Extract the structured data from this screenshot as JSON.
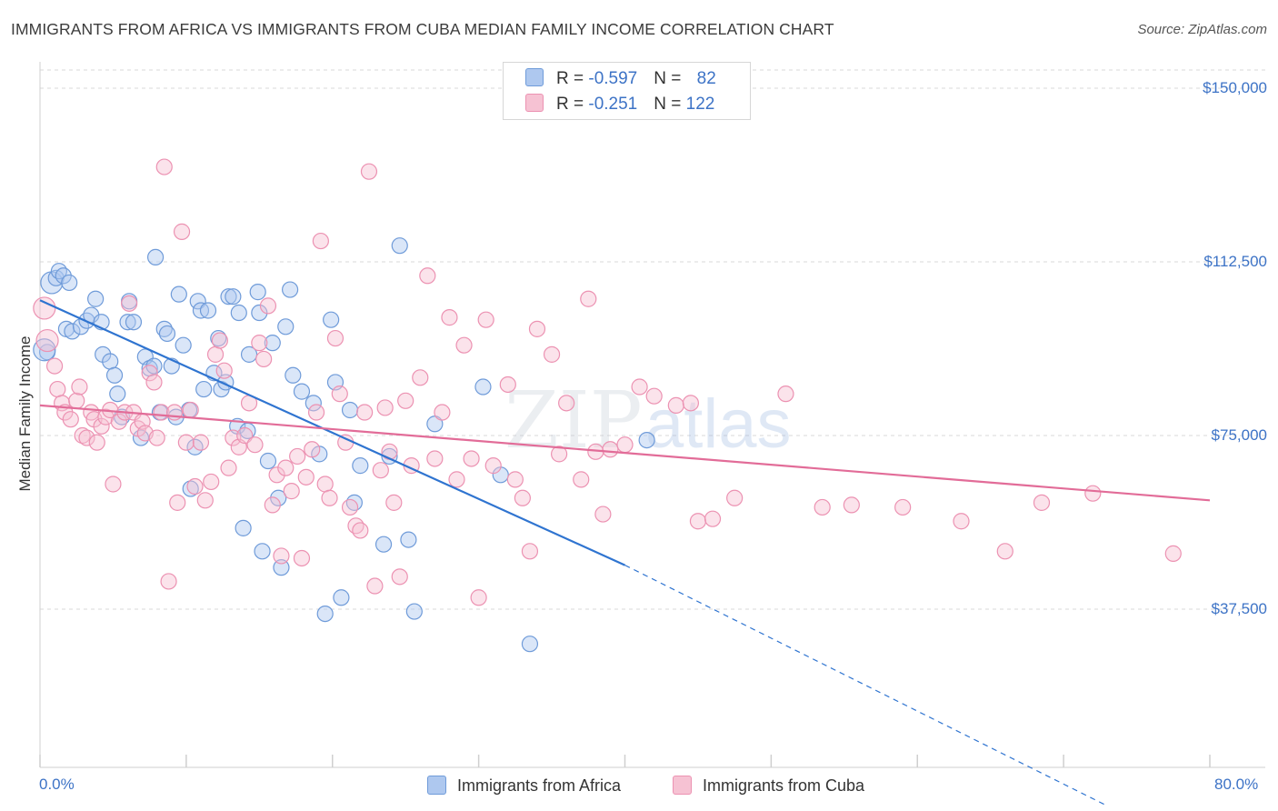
{
  "title": "IMMIGRANTS FROM AFRICA VS IMMIGRANTS FROM CUBA MEDIAN FAMILY INCOME CORRELATION CHART",
  "source": "Source: ZipAtlas.com",
  "watermark": {
    "part1": "ZIP",
    "part2": "atlas"
  },
  "legend": {
    "africa": {
      "r_label": "R = ",
      "r_value": "-0.597",
      "n_label": "N = ",
      "n_value": "82"
    },
    "cuba": {
      "r_label": "R = ",
      "r_value": "-0.251",
      "n_label": "N = ",
      "n_value": "122"
    }
  },
  "colors": {
    "africa_fill": "#aec8ef",
    "africa_stroke": "#6f9bd9",
    "africa_line": "#2f74d0",
    "cuba_fill": "#f6c2d3",
    "cuba_stroke": "#ec92b2",
    "cuba_line": "#e26c98",
    "grid": "#d9d9d9",
    "tick_label": "#3d73c6"
  },
  "chart_data": {
    "type": "scatter",
    "title": "IMMIGRANTS FROM AFRICA VS IMMIGRANTS FROM CUBA MEDIAN FAMILY INCOME CORRELATION CHART",
    "xlabel": "",
    "ylabel": "Median Family Income",
    "xlim": [
      0,
      80
    ],
    "ylim": [
      0,
      157000
    ],
    "x_tick_labels": [
      "0.0%",
      "80.0%"
    ],
    "y_ticks": [
      37500,
      75000,
      112500,
      150000
    ],
    "y_tick_labels": [
      "$37,500",
      "$75,000",
      "$112,500",
      "$150,000"
    ],
    "series": [
      {
        "name": "Immigrants from Africa",
        "key": "africa",
        "r": -0.597,
        "n": 82,
        "trend": {
          "x0": 0,
          "y0": 104200,
          "x1": 40,
          "y1": 47000,
          "dash_to_x": 73.0,
          "dash_to_y": -5000
        },
        "points": [
          [
            0.5,
            93000
          ],
          [
            0.8,
            108000
          ],
          [
            1.1,
            109000
          ],
          [
            1.3,
            110500
          ],
          [
            1.6,
            109500
          ],
          [
            2.0,
            108000
          ],
          [
            1.8,
            98000
          ],
          [
            2.2,
            97500
          ],
          [
            2.8,
            98500
          ],
          [
            3.2,
            99800
          ],
          [
            3.5,
            101000
          ],
          [
            3.8,
            104500
          ],
          [
            4.2,
            99500
          ],
          [
            4.3,
            92500
          ],
          [
            4.8,
            91000
          ],
          [
            5.1,
            88000
          ],
          [
            5.3,
            84000
          ],
          [
            5.6,
            79000
          ],
          [
            6.1,
            104000
          ],
          [
            6.0,
            99500
          ],
          [
            6.4,
            99500
          ],
          [
            6.9,
            74500
          ],
          [
            7.2,
            92000
          ],
          [
            7.5,
            89500
          ],
          [
            7.8,
            90000
          ],
          [
            7.9,
            113500
          ],
          [
            8.2,
            80000
          ],
          [
            8.5,
            98000
          ],
          [
            8.7,
            97000
          ],
          [
            9.0,
            90000
          ],
          [
            9.3,
            79000
          ],
          [
            9.5,
            105500
          ],
          [
            9.8,
            94500
          ],
          [
            10.2,
            80500
          ],
          [
            10.3,
            63500
          ],
          [
            10.6,
            72500
          ],
          [
            10.8,
            104000
          ],
          [
            11.0,
            102000
          ],
          [
            11.2,
            85000
          ],
          [
            11.5,
            102000
          ],
          [
            11.9,
            88500
          ],
          [
            12.2,
            96000
          ],
          [
            12.4,
            85000
          ],
          [
            12.7,
            86500
          ],
          [
            12.9,
            105000
          ],
          [
            13.2,
            105000
          ],
          [
            13.5,
            77000
          ],
          [
            13.6,
            101500
          ],
          [
            13.9,
            55000
          ],
          [
            14.2,
            76000
          ],
          [
            14.3,
            92500
          ],
          [
            14.9,
            106000
          ],
          [
            15.0,
            101500
          ],
          [
            15.2,
            50000
          ],
          [
            15.6,
            69500
          ],
          [
            15.9,
            95000
          ],
          [
            16.3,
            61500
          ],
          [
            16.5,
            46500
          ],
          [
            16.8,
            98500
          ],
          [
            17.1,
            106500
          ],
          [
            17.3,
            88000
          ],
          [
            17.9,
            84500
          ],
          [
            18.7,
            82000
          ],
          [
            19.1,
            71000
          ],
          [
            19.5,
            36500
          ],
          [
            19.9,
            100000
          ],
          [
            20.2,
            86500
          ],
          [
            20.6,
            40000
          ],
          [
            21.2,
            80500
          ],
          [
            21.5,
            60500
          ],
          [
            21.9,
            68500
          ],
          [
            23.5,
            51500
          ],
          [
            23.9,
            70500
          ],
          [
            24.6,
            116000
          ],
          [
            25.2,
            52500
          ],
          [
            25.6,
            37000
          ],
          [
            27.0,
            77500
          ],
          [
            30.3,
            85500
          ],
          [
            31.5,
            66500
          ],
          [
            33.5,
            30000
          ],
          [
            41.5,
            74000
          ],
          [
            0.3,
            93500
          ]
        ]
      },
      {
        "name": "Immigrants from Cuba",
        "key": "cuba",
        "r": -0.251,
        "n": 122,
        "trend": {
          "x0": 0,
          "y0": 81500,
          "x1": 80,
          "y1": 61000
        },
        "points": [
          [
            0.3,
            102500
          ],
          [
            0.5,
            95500
          ],
          [
            1.0,
            90000
          ],
          [
            1.2,
            85000
          ],
          [
            1.5,
            82000
          ],
          [
            1.7,
            80000
          ],
          [
            2.1,
            78500
          ],
          [
            2.5,
            82500
          ],
          [
            2.7,
            85500
          ],
          [
            2.9,
            75000
          ],
          [
            3.2,
            74500
          ],
          [
            3.5,
            80000
          ],
          [
            3.7,
            78500
          ],
          [
            3.9,
            73500
          ],
          [
            4.2,
            77000
          ],
          [
            4.5,
            79000
          ],
          [
            4.8,
            80500
          ],
          [
            5.0,
            64500
          ],
          [
            5.4,
            78000
          ],
          [
            5.8,
            80000
          ],
          [
            6.1,
            103500
          ],
          [
            6.4,
            80000
          ],
          [
            6.7,
            76500
          ],
          [
            7.0,
            78000
          ],
          [
            7.2,
            75500
          ],
          [
            7.5,
            88500
          ],
          [
            7.8,
            86500
          ],
          [
            8.0,
            74500
          ],
          [
            8.3,
            80000
          ],
          [
            8.5,
            133000
          ],
          [
            8.8,
            43500
          ],
          [
            9.2,
            80000
          ],
          [
            9.4,
            60500
          ],
          [
            9.7,
            119000
          ],
          [
            10.0,
            73500
          ],
          [
            10.3,
            80500
          ],
          [
            10.6,
            64000
          ],
          [
            11.0,
            73500
          ],
          [
            11.3,
            61000
          ],
          [
            11.7,
            65000
          ],
          [
            12.0,
            92500
          ],
          [
            12.3,
            95500
          ],
          [
            12.6,
            89000
          ],
          [
            12.9,
            68000
          ],
          [
            13.2,
            74500
          ],
          [
            13.6,
            72500
          ],
          [
            14.0,
            75000
          ],
          [
            14.3,
            82000
          ],
          [
            14.7,
            73000
          ],
          [
            15.0,
            95000
          ],
          [
            15.3,
            91500
          ],
          [
            15.6,
            103000
          ],
          [
            15.9,
            60000
          ],
          [
            16.2,
            66500
          ],
          [
            16.5,
            49000
          ],
          [
            16.8,
            68000
          ],
          [
            17.2,
            63000
          ],
          [
            17.6,
            70500
          ],
          [
            17.9,
            48500
          ],
          [
            18.2,
            66000
          ],
          [
            18.6,
            72000
          ],
          [
            18.9,
            80000
          ],
          [
            19.2,
            117000
          ],
          [
            19.5,
            64500
          ],
          [
            19.8,
            61500
          ],
          [
            20.2,
            96000
          ],
          [
            20.5,
            84000
          ],
          [
            20.9,
            73500
          ],
          [
            21.2,
            59500
          ],
          [
            21.6,
            55500
          ],
          [
            21.9,
            54500
          ],
          [
            22.2,
            80000
          ],
          [
            22.5,
            132000
          ],
          [
            22.9,
            42500
          ],
          [
            23.3,
            67500
          ],
          [
            23.6,
            81000
          ],
          [
            23.9,
            71500
          ],
          [
            24.2,
            60500
          ],
          [
            24.6,
            44500
          ],
          [
            25.0,
            82500
          ],
          [
            25.4,
            68500
          ],
          [
            26.0,
            87500
          ],
          [
            26.5,
            109500
          ],
          [
            27.0,
            70000
          ],
          [
            27.5,
            80000
          ],
          [
            28.0,
            100500
          ],
          [
            28.5,
            65500
          ],
          [
            29.0,
            94500
          ],
          [
            29.5,
            70000
          ],
          [
            30.0,
            40000
          ],
          [
            30.5,
            100000
          ],
          [
            31.0,
            68500
          ],
          [
            32.0,
            86000
          ],
          [
            32.5,
            65500
          ],
          [
            33.0,
            61500
          ],
          [
            33.5,
            50000
          ],
          [
            34.0,
            98000
          ],
          [
            35.0,
            92500
          ],
          [
            35.5,
            71000
          ],
          [
            36.0,
            82000
          ],
          [
            37.0,
            65500
          ],
          [
            37.5,
            104500
          ],
          [
            38.0,
            71500
          ],
          [
            38.5,
            58000
          ],
          [
            39.0,
            72000
          ],
          [
            40.0,
            73000
          ],
          [
            41.0,
            85500
          ],
          [
            42.0,
            83500
          ],
          [
            43.5,
            81500
          ],
          [
            44.5,
            82000
          ],
          [
            45.0,
            56500
          ],
          [
            46.0,
            57000
          ],
          [
            47.5,
            61500
          ],
          [
            51.0,
            84000
          ],
          [
            53.5,
            59500
          ],
          [
            55.5,
            60000
          ],
          [
            59.0,
            59500
          ],
          [
            63.0,
            56500
          ],
          [
            66.0,
            50000
          ],
          [
            68.5,
            60500
          ],
          [
            72.0,
            62500
          ],
          [
            77.5,
            49500
          ]
        ]
      }
    ]
  },
  "bottom_legend": {
    "africa": "Immigrants from Africa",
    "cuba": "Immigrants from Cuba"
  },
  "axis": {
    "y_title": "Median Family Income",
    "x_min_label": "0.0%",
    "x_max_label": "80.0%"
  }
}
